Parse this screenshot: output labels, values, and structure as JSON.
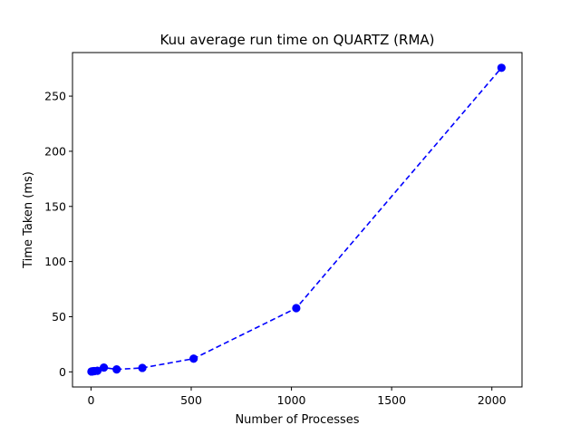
{
  "chart_data": {
    "type": "line",
    "title": "Kuu average run time on QUARTZ (RMA)",
    "xlabel": "Number of Processes",
    "ylabel": "Time Taken (ms)",
    "xlim": [
      -92.4,
      2150.4
    ],
    "ylim": [
      -13.7,
      289.5
    ],
    "xticks": [
      0,
      500,
      1000,
      1500,
      2000
    ],
    "xtick_labels": [
      "0",
      "500",
      "1000",
      "1500",
      "2000"
    ],
    "yticks": [
      0,
      50,
      100,
      150,
      200,
      250
    ],
    "ytick_labels": [
      "0",
      "50",
      "100",
      "150",
      "200",
      "250"
    ],
    "grid": false,
    "series": [
      {
        "color": "#0000ff",
        "line_style": "dashed",
        "marker": "circle",
        "x": [
          2,
          4,
          8,
          16,
          32,
          64,
          128,
          256,
          512,
          1024,
          2048
        ],
        "y": [
          0.3,
          0.4,
          0.5,
          0.7,
          1.0,
          3.9,
          2.2,
          3.6,
          12.0,
          57.8,
          275.7
        ]
      }
    ]
  }
}
